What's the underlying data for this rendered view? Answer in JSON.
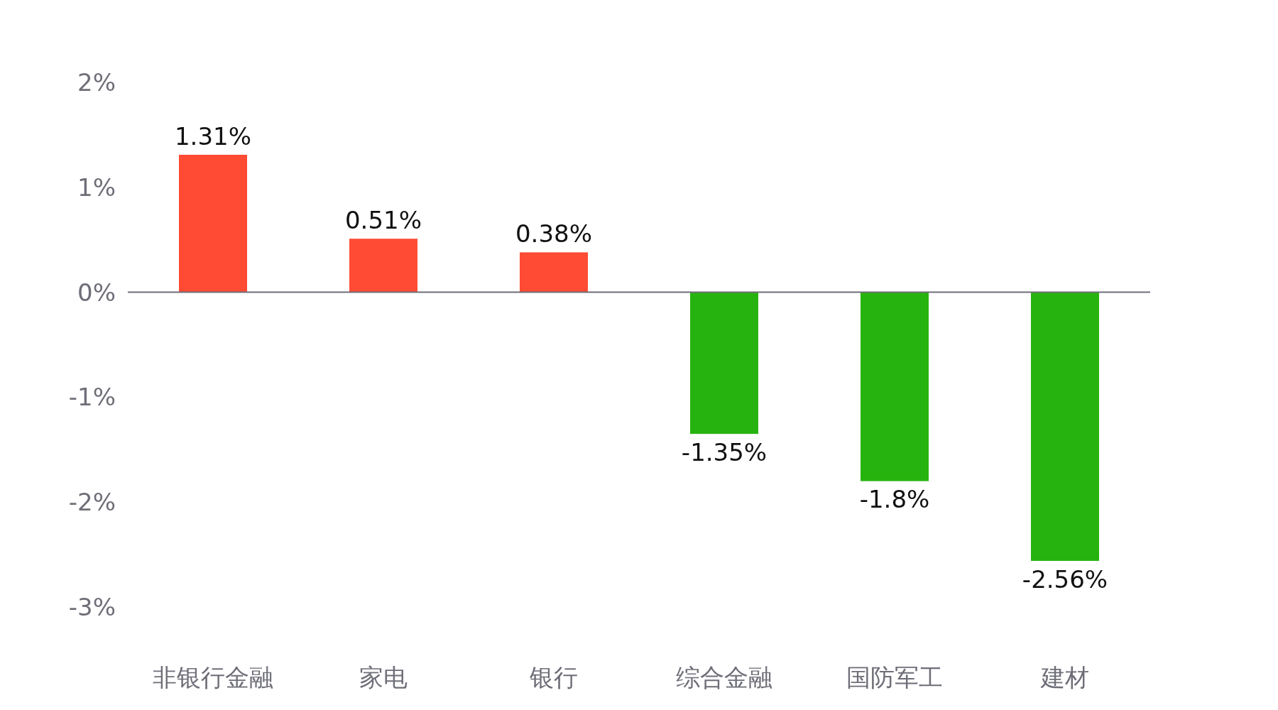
{
  "chart_data": {
    "type": "bar",
    "categories": [
      "非银行金融",
      "家电",
      "银行",
      "综合金融",
      "国防军工",
      "建材"
    ],
    "values": [
      1.31,
      0.51,
      0.38,
      -1.35,
      -1.8,
      -2.56
    ],
    "colors": [
      "#ff4b33",
      "#ff4b33",
      "#ff4b33",
      "#27b30f",
      "#27b30f",
      "#27b30f"
    ],
    "value_labels": [
      "1.31%",
      "0.51%",
      "0.38%",
      "-1.35%",
      "-1.8%",
      "-2.56%"
    ],
    "ylim": [
      -3,
      2
    ],
    "yticks": [
      {
        "value": 2,
        "label": "2%"
      },
      {
        "value": 1,
        "label": "1%"
      },
      {
        "value": 0,
        "label": "0%"
      },
      {
        "value": -1,
        "label": "-1%"
      },
      {
        "value": -2,
        "label": "-2%"
      },
      {
        "value": -3,
        "label": "-3%"
      }
    ]
  }
}
